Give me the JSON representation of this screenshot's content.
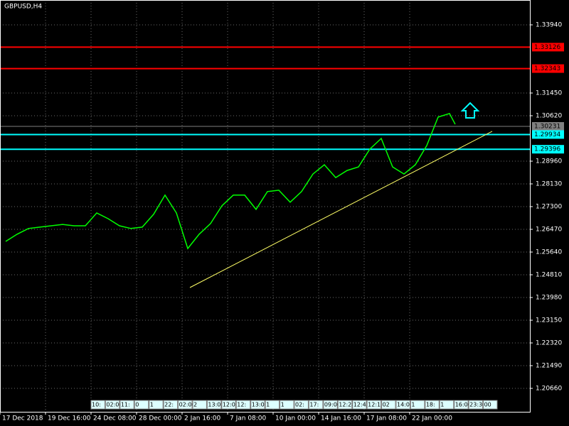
{
  "chart_data": {
    "type": "line",
    "title": "GBPUSD,H4",
    "x": [
      2,
      6,
      10,
      14,
      18,
      22,
      26,
      30,
      34,
      38,
      42,
      46,
      50,
      54,
      58,
      62,
      66,
      70,
      74,
      78,
      82,
      86,
      90,
      94,
      98,
      102,
      106,
      110,
      114,
      118,
      122,
      126,
      130,
      134,
      138,
      142,
      146,
      150,
      154,
      158,
      160
    ],
    "series": [
      {
        "color": "#00ff00",
        "values": [
          1.2603,
          1.2629,
          1.265,
          1.2655,
          1.266,
          1.2665,
          1.266,
          1.266,
          1.2707,
          1.2686,
          1.266,
          1.265,
          1.2655,
          1.2702,
          1.2772,
          1.2707,
          1.2577,
          1.2629,
          1.2668,
          1.2733,
          1.2772,
          1.2772,
          1.272,
          1.2785,
          1.279,
          1.2746,
          1.2785,
          1.2849,
          1.2883,
          1.2836,
          1.2862,
          1.2875,
          1.294,
          1.2979,
          1.2875,
          1.2849,
          1.2883,
          1.2953,
          1.3057,
          1.307,
          1.3031
        ]
      }
    ],
    "xlim": [
      0,
      186.25
    ],
    "ylim": [
      1.19804,
      1.34848
    ],
    "xticks": [
      {
        "value": 0,
        "label": "17 Dec 2018"
      },
      {
        "value": 16,
        "label": "19 Dec 16:00"
      },
      {
        "value": 32,
        "label": "24 Dec 08:00"
      },
      {
        "value": 48,
        "label": "28 Dec 00:00"
      },
      {
        "value": 64,
        "label": "2 Jan 16:00"
      },
      {
        "value": 80,
        "label": "7 Jan 08:00"
      },
      {
        "value": 96,
        "label": "10 Jan 00:00"
      },
      {
        "value": 112,
        "label": "14 Jan 16:00"
      },
      {
        "value": 128,
        "label": "17 Jan 08:00"
      },
      {
        "value": 144,
        "label": "22 Jan 00:00"
      }
    ],
    "yticks": [
      {
        "value": 1.3394,
        "label": "1.33940"
      },
      {
        "value": 1.3145,
        "label": "1.31450"
      },
      {
        "value": 1.3062,
        "label": "1.30620"
      },
      {
        "value": 1.2896,
        "label": "1.28960"
      },
      {
        "value": 1.2813,
        "label": "1.28130"
      },
      {
        "value": 1.273,
        "label": "1.27300"
      },
      {
        "value": 1.2647,
        "label": "1.26470"
      },
      {
        "value": 1.2564,
        "label": "1.25640"
      },
      {
        "value": 1.2481,
        "label": "1.24810"
      },
      {
        "value": 1.2398,
        "label": "1.23980"
      },
      {
        "value": 1.2315,
        "label": "1.23150"
      },
      {
        "value": 1.2232,
        "label": "1.22320"
      },
      {
        "value": 1.2149,
        "label": "1.21490"
      },
      {
        "value": 1.2066,
        "label": "1.20660"
      }
    ],
    "grid": true,
    "levels": [
      {
        "value": 1.33126,
        "color": "#ff0000"
      },
      {
        "value": 1.32343,
        "color": "#ff0000"
      },
      {
        "value": 1.30231,
        "color": "#808080"
      },
      {
        "value": 1.29934,
        "color": "#00ffff"
      },
      {
        "value": 1.29396,
        "color": "#00ffff"
      }
    ],
    "trendline": {
      "x": [
        66.75,
        173
      ],
      "values": [
        1.24343,
        1.3005
      ],
      "color": "#ffff66"
    },
    "time_markers": [
      "10:",
      "02:00",
      "11:",
      "0",
      "1",
      "22:",
      "02:00",
      "2",
      "13:05",
      "12:0",
      "12:",
      "13:0",
      "1",
      "1",
      "02:",
      "17:",
      "09:00",
      "12:28",
      "12:42",
      "12:17",
      "02",
      "14:0",
      "1",
      "18:",
      "1",
      "16:00",
      "23:30",
      "00"
    ]
  }
}
